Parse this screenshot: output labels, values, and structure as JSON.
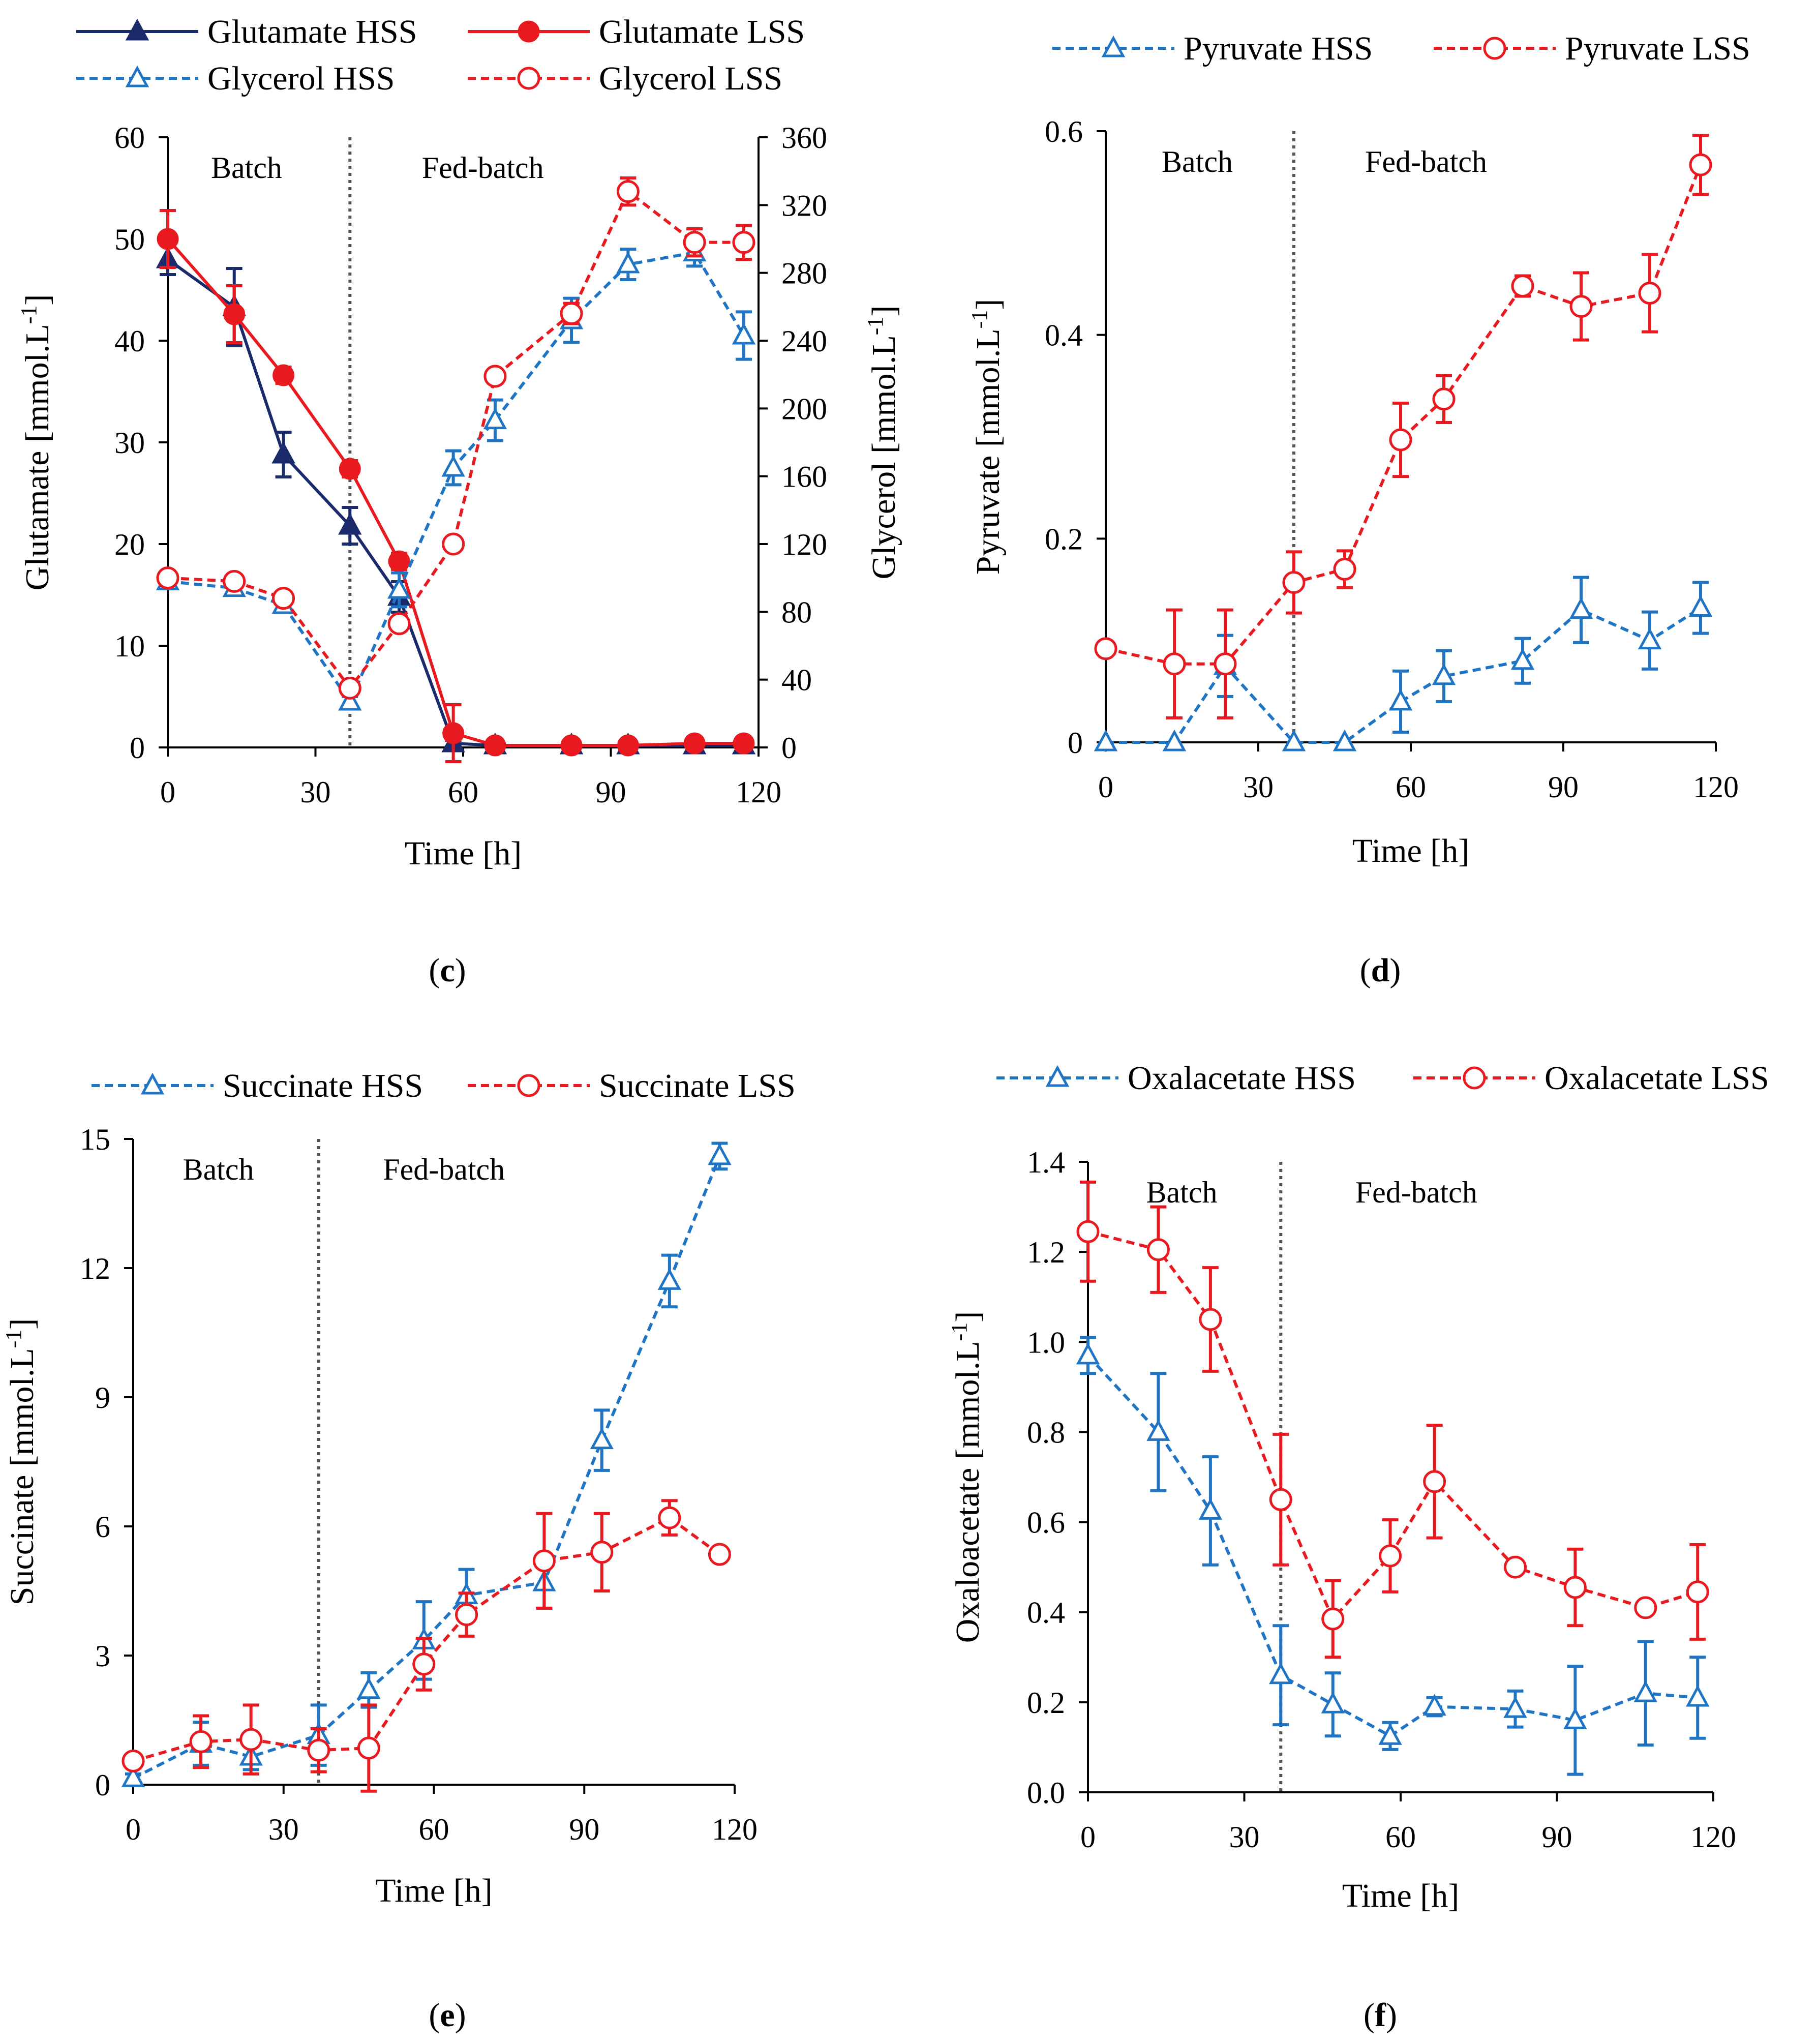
{
  "colors": {
    "navy": "#1B2A6B",
    "red": "#E8191F",
    "blue": "#1F74C4",
    "axis": "#000000",
    "divider": "#555555"
  },
  "chart_data": [
    {
      "id": "c",
      "type": "line",
      "panel_label": {
        "open": "(",
        "letter": "c",
        "close": ")"
      },
      "xlabel": "Time [h]",
      "ylabel": "Glutamate [mmol.L⁻¹]",
      "y2label": "Glycerol [mmol.L⁻¹]",
      "xlim": [
        0,
        120
      ],
      "ylim": [
        0,
        60
      ],
      "y2lim": [
        0,
        360
      ],
      "xticks": [
        0,
        30,
        60,
        90,
        120
      ],
      "yticks": [
        0,
        10,
        20,
        30,
        40,
        50,
        60
      ],
      "y2ticks": [
        0,
        40,
        80,
        120,
        160,
        200,
        240,
        280,
        320,
        360
      ],
      "divider_x": 37,
      "period_labels": [
        {
          "text": "Batch",
          "x": 16
        },
        {
          "text": "Fed-batch",
          "x": 64
        }
      ],
      "legend_columns": 2,
      "series": [
        {
          "name": "Glutamate HSS",
          "color": "navy",
          "marker": "triangle",
          "filled": true,
          "dashed": false,
          "axis": "left",
          "x": [
            0,
            13.5,
            23.5,
            37,
            47,
            58,
            66.5,
            82,
            93.5,
            107,
            117
          ],
          "y": [
            48,
            43.3,
            28.8,
            21.8,
            14.8,
            0.4,
            0.2,
            0.2,
            0.2,
            0.2,
            0.2
          ],
          "err": [
            1.5,
            3.8,
            2.2,
            1.8,
            1.5,
            0.3,
            0.2,
            0.2,
            0.2,
            0.2,
            0.2
          ]
        },
        {
          "name": "Glutamate LSS",
          "color": "red",
          "marker": "circle",
          "filled": true,
          "dashed": false,
          "axis": "left",
          "x": [
            0,
            13.5,
            23.5,
            37,
            47,
            58,
            66.5,
            82,
            93.5,
            107,
            117
          ],
          "y": [
            50,
            42.6,
            36.6,
            27.4,
            18.3,
            1.4,
            0.2,
            0.2,
            0.2,
            0.4,
            0.4
          ],
          "err": [
            2.8,
            2.8,
            0.8,
            0.8,
            0.8,
            2.8,
            0.2,
            0.2,
            0.2,
            0.2,
            0.2
          ]
        },
        {
          "name": "Glycerol HSS",
          "color": "blue",
          "marker": "triangle",
          "filled": false,
          "dashed": true,
          "axis": "right",
          "x": [
            0,
            13.5,
            23.5,
            37,
            47,
            58,
            66.5,
            82,
            93.5,
            107,
            117
          ],
          "y": [
            98,
            94,
            84,
            27,
            93,
            165,
            193,
            252,
            285,
            292,
            243
          ],
          "err": [
            3,
            3,
            3,
            3,
            10,
            10,
            12,
            13,
            9,
            8,
            14
          ]
        },
        {
          "name": "Glycerol LSS",
          "color": "red",
          "marker": "circle",
          "filled": false,
          "dashed": true,
          "axis": "right",
          "x": [
            0,
            13.5,
            23.5,
            37,
            47,
            58,
            66.5,
            82,
            93.5,
            107,
            117
          ],
          "y": [
            100,
            98,
            88,
            35,
            73,
            120,
            219,
            256,
            328,
            298,
            298
          ],
          "err": [
            3,
            3,
            3,
            3,
            4,
            4,
            4,
            6,
            8,
            8,
            10
          ]
        }
      ]
    },
    {
      "id": "d",
      "type": "line",
      "panel_label": {
        "open": "(",
        "letter": "d",
        "close": ")"
      },
      "xlabel": "Time [h]",
      "ylabel": "Pyruvate [mmol.L⁻¹]",
      "xlim": [
        0,
        120
      ],
      "ylim": [
        0,
        0.6
      ],
      "xticks": [
        0,
        30,
        60,
        90,
        120
      ],
      "yticks": [
        0,
        0.2,
        0.4,
        0.6
      ],
      "ytick_labels": [
        "0",
        "0.2",
        "0.4",
        "0.6"
      ],
      "divider_x": 37,
      "period_labels": [
        {
          "text": "Batch",
          "x": 18
        },
        {
          "text": "Fed-batch",
          "x": 63
        }
      ],
      "legend_columns": 2,
      "series": [
        {
          "name": "Pyruvate HSS",
          "color": "blue",
          "marker": "triangle",
          "filled": false,
          "dashed": true,
          "x": [
            0,
            13.5,
            23.5,
            37,
            47,
            58,
            66.5,
            82,
            93.5,
            107,
            117
          ],
          "y": [
            0,
            0,
            0.075,
            0,
            0,
            0.04,
            0.065,
            0.08,
            0.13,
            0.1,
            0.132
          ],
          "err": [
            0,
            0,
            0.03,
            0,
            0,
            0.03,
            0.025,
            0.022,
            0.032,
            0.028,
            0.025
          ]
        },
        {
          "name": "Pyruvate LSS",
          "color": "red",
          "marker": "circle",
          "filled": false,
          "dashed": true,
          "x": [
            0,
            13.5,
            23.5,
            37,
            47,
            58,
            66.5,
            82,
            93.5,
            107,
            117
          ],
          "y": [
            0.092,
            0.077,
            0.077,
            0.157,
            0.17,
            0.297,
            0.337,
            0.448,
            0.428,
            0.441,
            0.567
          ],
          "err": [
            0.005,
            0.053,
            0.053,
            0.03,
            0.018,
            0.036,
            0.023,
            0.01,
            0.033,
            0.038,
            0.029
          ]
        }
      ]
    },
    {
      "id": "e",
      "type": "line",
      "panel_label": {
        "open": "(",
        "letter": "e",
        "close": ")"
      },
      "xlabel": "Time [h]",
      "ylabel": "Succinate [mmol.L⁻¹]",
      "xlim": [
        0,
        120
      ],
      "ylim": [
        0,
        15
      ],
      "xticks": [
        0,
        30,
        60,
        90,
        120
      ],
      "yticks": [
        0,
        3,
        6,
        9,
        12,
        15
      ],
      "divider_x": 37,
      "period_labels": [
        {
          "text": "Batch",
          "x": 17
        },
        {
          "text": "Fed-batch",
          "x": 62
        }
      ],
      "legend_columns": 2,
      "series": [
        {
          "name": "Succinate HSS",
          "color": "blue",
          "marker": "triangle",
          "filled": false,
          "dashed": true,
          "x": [
            0,
            13.5,
            23.5,
            37,
            47,
            58,
            66.5,
            82,
            93.5,
            107,
            117
          ],
          "y": [
            0.15,
            0.95,
            0.65,
            1.15,
            2.2,
            3.35,
            4.4,
            4.7,
            8.0,
            11.7,
            14.6
          ],
          "err": [
            0.1,
            0.5,
            0.3,
            0.7,
            0.4,
            0.9,
            0.6,
            0.6,
            0.7,
            0.6,
            0.3
          ]
        },
        {
          "name": "Succinate LSS",
          "color": "red",
          "marker": "circle",
          "filled": false,
          "dashed": true,
          "x": [
            0,
            13.5,
            23.5,
            37,
            47,
            58,
            66.5,
            82,
            93.5,
            107,
            117
          ],
          "y": [
            0.55,
            1.0,
            1.05,
            0.8,
            0.85,
            2.8,
            3.95,
            5.2,
            5.4,
            6.2,
            5.35
          ],
          "err": [
            0.1,
            0.6,
            0.8,
            0.5,
            1.0,
            0.6,
            0.5,
            1.1,
            0.9,
            0.4,
            0.1
          ]
        }
      ]
    },
    {
      "id": "f",
      "type": "line",
      "panel_label": {
        "open": "(",
        "letter": "f",
        "close": ")"
      },
      "xlabel": "Time [h]",
      "ylabel": "Oxaloacetate [mmol.L⁻¹]",
      "xlim": [
        0,
        120
      ],
      "ylim": [
        0,
        1.4
      ],
      "xticks": [
        0,
        30,
        60,
        90,
        120
      ],
      "yticks": [
        0,
        0.2,
        0.4,
        0.6,
        0.8,
        1.0,
        1.2,
        1.4
      ],
      "ytick_labels": [
        "0.0",
        "0.2",
        "0.4",
        "0.6",
        "0.8",
        "1.0",
        "1.2",
        "1.4"
      ],
      "divider_x": 37,
      "period_labels": [
        {
          "text": "Batch",
          "x": 18
        },
        {
          "text": "Fed-batch",
          "x": 63
        }
      ],
      "legend_columns": 2,
      "series": [
        {
          "name": "Oxalacetate HSS",
          "color": "blue",
          "marker": "triangle",
          "filled": false,
          "dashed": true,
          "x": [
            0,
            13.5,
            23.5,
            37,
            47,
            58,
            66.5,
            82,
            93.5,
            107,
            117
          ],
          "y": [
            0.97,
            0.8,
            0.625,
            0.26,
            0.195,
            0.125,
            0.19,
            0.185,
            0.16,
            0.22,
            0.21
          ],
          "err": [
            0.04,
            0.13,
            0.12,
            0.11,
            0.07,
            0.03,
            0.02,
            0.04,
            0.12,
            0.115,
            0.09
          ]
        },
        {
          "name": "Oxalacetate LSS",
          "color": "red",
          "marker": "circle",
          "filled": false,
          "dashed": true,
          "x": [
            0,
            13.5,
            23.5,
            37,
            47,
            58,
            66.5,
            82,
            93.5,
            107,
            117
          ],
          "y": [
            1.245,
            1.205,
            1.05,
            0.65,
            0.385,
            0.525,
            0.69,
            0.5,
            0.455,
            0.41,
            0.445
          ],
          "err": [
            0.11,
            0.095,
            0.115,
            0.145,
            0.085,
            0.08,
            0.125,
            0.01,
            0.085,
            0.01,
            0.105
          ]
        }
      ]
    }
  ]
}
